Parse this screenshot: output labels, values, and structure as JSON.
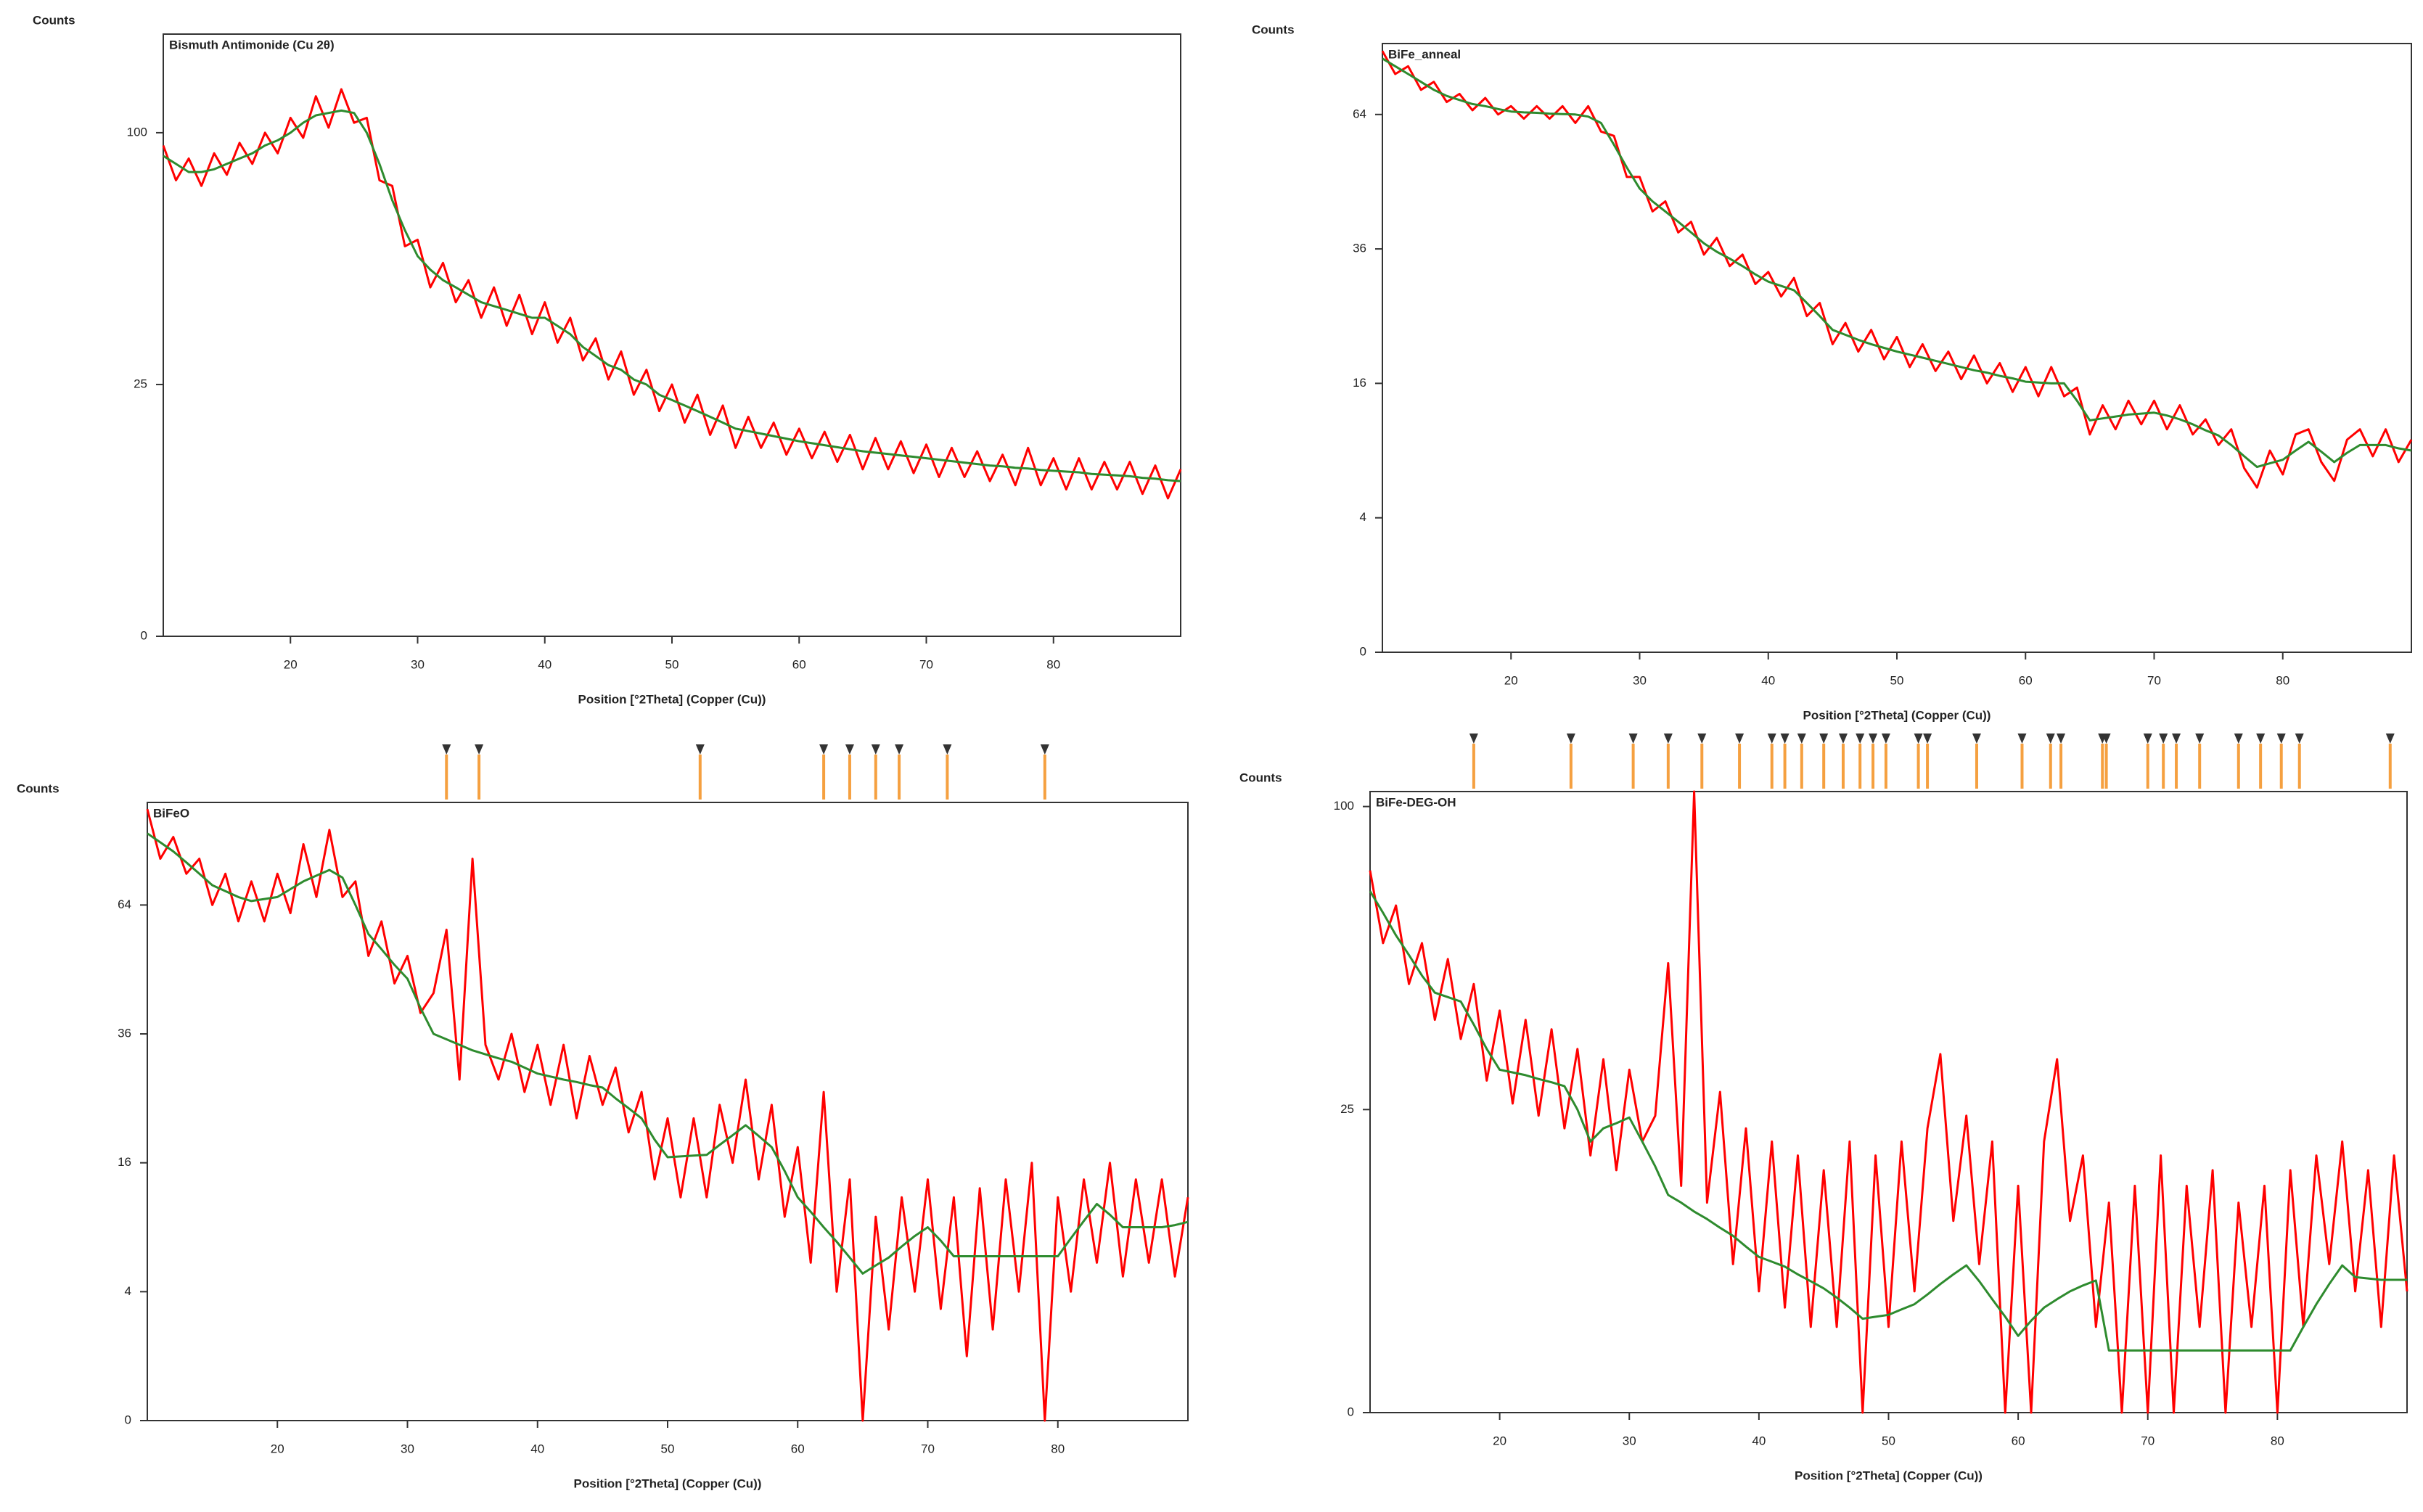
{
  "chart_data": [
    {
      "type": "line",
      "title": "Bismuth Antimonide (Cu 2θ)",
      "y_label": "Counts",
      "x_label": "Position [°2Theta] (Copper (Cu))",
      "yscale": "sqrt",
      "xlim": [
        10,
        90
      ],
      "ylim": [
        0,
        143
      ],
      "xticks": [
        20,
        30,
        40,
        50,
        60,
        70,
        80
      ],
      "yticks": [
        0,
        25,
        100
      ],
      "x": [
        10,
        11,
        12,
        13,
        14,
        15,
        16,
        17,
        18,
        19,
        20,
        21,
        22,
        23,
        24,
        25,
        26,
        27,
        28,
        29,
        30,
        31,
        32,
        33,
        34,
        35,
        36,
        37,
        38,
        39,
        40,
        41,
        42,
        43,
        44,
        45,
        46,
        47,
        48,
        49,
        50,
        51,
        52,
        53,
        54,
        55,
        56,
        57,
        58,
        59,
        60,
        61,
        62,
        63,
        64,
        65,
        66,
        67,
        68,
        69,
        70,
        71,
        72,
        73,
        74,
        75,
        76,
        77,
        78,
        79,
        80,
        81,
        82,
        83,
        84,
        85,
        86,
        87,
        88,
        89,
        90
      ],
      "series": [
        {
          "color": "#ff0000",
          "values": [
            95,
            82,
            90,
            80,
            92,
            84,
            96,
            88,
            100,
            92,
            106,
            98,
            115,
            102,
            118,
            104,
            106,
            82,
            80,
            60,
            62,
            48,
            55,
            44,
            50,
            40,
            48,
            38,
            46,
            36,
            44,
            34,
            40,
            30,
            35,
            26,
            32,
            23,
            28,
            20,
            25,
            18,
            23,
            16,
            21,
            14,
            19,
            14,
            18,
            13,
            17,
            12.5,
            16.5,
            12,
            16,
            11,
            15.5,
            11,
            15,
            10.5,
            14.5,
            10,
            14,
            10,
            13.5,
            9.5,
            13,
            9,
            14,
            9,
            12.5,
            8.5,
            12.5,
            8.5,
            12,
            8.5,
            12,
            8,
            11.5,
            7.5,
            11
          ]
        },
        {
          "color": "#2e8b2e",
          "values": [
            91,
            88,
            85,
            85,
            86,
            88,
            90,
            92,
            95,
            97,
            100,
            104,
            107,
            108,
            109,
            108,
            100,
            88,
            75,
            65,
            57,
            53,
            50,
            48,
            46,
            44,
            43,
            42,
            41,
            40,
            40,
            38,
            36,
            33,
            31,
            29,
            28,
            26,
            25,
            23,
            22,
            21,
            20,
            19,
            18,
            17,
            16.6,
            16.2,
            15.8,
            15.4,
            15,
            14.7,
            14.4,
            14.1,
            13.8,
            13.5,
            13.3,
            13.1,
            12.9,
            12.7,
            12.5,
            12.3,
            12.1,
            11.9,
            11.7,
            11.5,
            11.4,
            11.2,
            11.1,
            10.9,
            10.8,
            10.7,
            10.6,
            10.4,
            10.3,
            10.2,
            10.1,
            9.9,
            9.8,
            9.6,
            9.5
          ]
        }
      ]
    },
    {
      "type": "line",
      "title": "BiFe_anneal",
      "y_label": "Counts",
      "x_label": "Position [°2Theta] (Copper (Cu))",
      "yscale": "sqrt",
      "xlim": [
        10,
        90
      ],
      "ylim": [
        0,
        82
      ],
      "xticks": [
        20,
        30,
        40,
        50,
        60,
        70,
        80
      ],
      "yticks": [
        0,
        4,
        16,
        36,
        64
      ],
      "x": [
        10,
        11,
        12,
        13,
        14,
        15,
        16,
        17,
        18,
        19,
        20,
        21,
        22,
        23,
        24,
        25,
        26,
        27,
        28,
        29,
        30,
        31,
        32,
        33,
        34,
        35,
        36,
        37,
        38,
        39,
        40,
        41,
        42,
        43,
        44,
        45,
        46,
        47,
        48,
        49,
        50,
        51,
        52,
        53,
        54,
        55,
        56,
        57,
        58,
        59,
        60,
        61,
        62,
        63,
        64,
        65,
        66,
        67,
        68,
        69,
        70,
        71,
        72,
        73,
        74,
        75,
        76,
        77,
        78,
        79,
        80,
        81,
        82,
        83,
        84,
        85,
        86,
        87,
        88,
        89,
        90
      ],
      "series": [
        {
          "color": "#ff0000",
          "values": [
            80,
            74,
            76,
            70,
            72,
            67,
            69,
            65,
            68,
            64,
            66,
            63,
            66,
            63,
            66,
            62,
            66,
            60,
            59,
            50,
            50,
            43,
            45,
            39,
            41,
            35,
            38,
            33,
            35,
            30,
            32,
            28,
            31,
            25,
            27,
            21,
            24,
            20,
            23,
            19,
            22,
            18,
            21,
            17.5,
            20,
            16.5,
            19.5,
            16,
            18.5,
            15,
            18,
            14.5,
            18,
            14.5,
            15.5,
            10.5,
            13.5,
            11,
            14,
            11.5,
            14,
            11,
            13.5,
            10.5,
            12,
            9.5,
            11,
            7.5,
            6,
            9,
            7,
            10.5,
            11,
            8,
            6.5,
            10,
            11,
            8.5,
            11,
            8,
            10
          ]
        },
        {
          "color": "#2e8b2e",
          "values": [
            78,
            76,
            74,
            72,
            70,
            68.5,
            67.5,
            66.5,
            66,
            65.3,
            64.7,
            64.5,
            64.4,
            64.2,
            64.1,
            64,
            63.5,
            62,
            57,
            52,
            47.6,
            45,
            43,
            41,
            39,
            37,
            35.5,
            34.3,
            33,
            31.6,
            30.4,
            29.7,
            29,
            27,
            25,
            23,
            22.3,
            21.6,
            21,
            20.5,
            20,
            19.6,
            19.2,
            18.8,
            18.4,
            18,
            17.6,
            17.3,
            16.9,
            16.6,
            16.2,
            16.1,
            16,
            16,
            14,
            11.9,
            12.1,
            12.3,
            12.5,
            12.6,
            12.7,
            12.4,
            12,
            11.5,
            10.9,
            10.4,
            9.5,
            8.5,
            7.6,
            7.9,
            8.2,
            9,
            9.8,
            8.9,
            8,
            8.8,
            9.5,
            9.5,
            9.5,
            9.2,
            9
          ]
        }
      ]
    },
    {
      "type": "line",
      "title": "BiFeO",
      "y_label": "Counts",
      "x_label": "Position [°2Theta] (Copper (Cu))",
      "yscale": "sqrt",
      "xlim": [
        10,
        90
      ],
      "ylim": [
        0,
        92
      ],
      "xticks": [
        20,
        30,
        40,
        50,
        60,
        70,
        80
      ],
      "yticks": [
        0,
        4,
        16,
        36,
        64
      ],
      "reference_peaks": [
        33,
        35.5,
        52.5,
        62,
        64,
        66,
        67.8,
        71.5,
        79
      ],
      "x": [
        10,
        11,
        12,
        13,
        14,
        15,
        16,
        17,
        18,
        19,
        20,
        21,
        22,
        23,
        24,
        25,
        26,
        27,
        28,
        29,
        30,
        31,
        32,
        33,
        34,
        35,
        36,
        37,
        38,
        39,
        40,
        41,
        42,
        43,
        44,
        45,
        46,
        47,
        48,
        49,
        50,
        51,
        52,
        53,
        54,
        55,
        56,
        57,
        58,
        59,
        60,
        61,
        62,
        63,
        64,
        65,
        66,
        67,
        68,
        69,
        70,
        71,
        72,
        73,
        74,
        75,
        76,
        77,
        78,
        79,
        80,
        81,
        82,
        83,
        84,
        85,
        86,
        87,
        88,
        89,
        90
      ],
      "series": [
        {
          "color": "#ff0000",
          "values": [
            90,
            76,
            82,
            72,
            76,
            64,
            72,
            60,
            70,
            60,
            72,
            62,
            80,
            66,
            84,
            66,
            70,
            52,
            60,
            46,
            52,
            40,
            44,
            58,
            28,
            76,
            34,
            28,
            36,
            26,
            34,
            24,
            34,
            22,
            32,
            24,
            30,
            20,
            26,
            14,
            22,
            12,
            22,
            12,
            24,
            16,
            28,
            14,
            24,
            10,
            18,
            6,
            26,
            4,
            14,
            0,
            10,
            2,
            12,
            4,
            14,
            3,
            12,
            1,
            13,
            2,
            14,
            4,
            16,
            0,
            12,
            4,
            14,
            6,
            16,
            5,
            14,
            6,
            14,
            5,
            12
          ]
        },
        {
          "color": "#2e8b2e",
          "values": [
            83,
            80.5,
            78,
            75,
            72,
            69,
            67.5,
            66,
            65,
            65.5,
            66,
            68,
            70,
            71.5,
            73,
            71,
            64,
            57,
            53.5,
            50,
            47,
            41,
            36,
            35,
            34,
            33,
            32.3,
            31.6,
            31,
            30,
            29,
            28.5,
            28,
            27.6,
            27.1,
            26.7,
            25,
            23.5,
            22,
            19,
            16.7,
            16.8,
            16.9,
            17,
            18.3,
            19.6,
            21,
            19.5,
            18,
            15,
            12,
            10.5,
            9,
            7.7,
            6.4,
            5.2,
            5.8,
            6.4,
            7.3,
            8.2,
            9,
            7.8,
            6.5,
            6.5,
            6.5,
            6.5,
            6.5,
            6.5,
            6.5,
            6.5,
            6.5,
            8,
            9.6,
            11.3,
            10.2,
            9,
            9,
            9,
            9,
            9.2,
            9.5
          ]
        }
      ]
    },
    {
      "type": "line",
      "title": "BiFe-DEG-OH",
      "y_label": "Counts",
      "x_label": "Position [°2Theta] (Copper (Cu))",
      "yscale": "sqrt",
      "xlim": [
        10,
        90
      ],
      "ylim": [
        0,
        105
      ],
      "xticks": [
        20,
        30,
        40,
        50,
        60,
        70,
        80
      ],
      "yticks": [
        0,
        25,
        100
      ],
      "reference_peaks": [
        18,
        25.5,
        30.3,
        33,
        35.6,
        38.5,
        41,
        42,
        43.3,
        45,
        46.5,
        47.8,
        48.8,
        49.8,
        52.3,
        53,
        56.8,
        60.3,
        62.5,
        63.3,
        66.5,
        66.8,
        70,
        71.2,
        72.2,
        74,
        77,
        78.7,
        80.3,
        81.7,
        88.7
      ],
      "x": [
        10,
        11,
        12,
        13,
        14,
        15,
        16,
        17,
        18,
        19,
        20,
        21,
        22,
        23,
        24,
        25,
        26,
        27,
        28,
        29,
        30,
        31,
        32,
        33,
        34,
        35,
        36,
        37,
        38,
        39,
        40,
        41,
        42,
        43,
        44,
        45,
        46,
        47,
        48,
        49,
        50,
        51,
        52,
        53,
        54,
        55,
        56,
        57,
        58,
        59,
        60,
        61,
        62,
        63,
        64,
        65,
        66,
        67,
        68,
        69,
        70,
        71,
        72,
        73,
        74,
        75,
        76,
        77,
        78,
        79,
        80,
        81,
        82,
        83,
        84,
        85,
        86,
        87,
        88,
        89,
        90
      ],
      "series": [
        {
          "color": "#ff0000",
          "values": [
            80,
            60,
            70,
            50,
            60,
            42,
            56,
            38,
            50,
            30,
            44,
            26,
            42,
            24,
            40,
            22,
            36,
            18,
            34,
            16,
            32,
            20,
            24,
            55,
            14,
            105,
            12,
            28,
            6,
            22,
            4,
            20,
            3,
            18,
            2,
            16,
            2,
            20,
            0,
            18,
            2,
            20,
            4,
            22,
            35,
            10,
            24,
            6,
            20,
            0,
            14,
            0,
            20,
            34,
            10,
            18,
            2,
            12,
            0,
            14,
            0,
            18,
            0,
            14,
            2,
            16,
            0,
            12,
            2,
            14,
            0,
            16,
            2,
            18,
            6,
            20,
            4,
            16,
            2,
            18,
            4
          ]
        },
        {
          "color": "#2e8b2e",
          "values": [
            74,
            68,
            62,
            57,
            52,
            48,
            47,
            46,
            41,
            36,
            32,
            31.5,
            31,
            30.3,
            29.7,
            29,
            25,
            20,
            22,
            22.8,
            23.7,
            20,
            16.5,
            12.9,
            12,
            11,
            10.2,
            9.3,
            8.5,
            7.5,
            6.6,
            6.2,
            5.8,
            5.2,
            4.7,
            4.2,
            3.6,
            3,
            2.4,
            2.5,
            2.6,
            2.9,
            3.2,
            3.8,
            4.5,
            5.2,
            5.9,
            4.7,
            3.5,
            2.5,
            1.6,
            2.3,
            3,
            3.5,
            4,
            4.4,
            4.75,
            1.05,
            1.05,
            1.05,
            1.05,
            1.05,
            1.05,
            1.05,
            1.05,
            1.05,
            1.05,
            1.05,
            1.05,
            1.05,
            1.05,
            1.05,
            2,
            3.2,
            4.5,
            5.9,
            5,
            4.9,
            4.8,
            4.8,
            4.8
          ]
        }
      ]
    }
  ]
}
